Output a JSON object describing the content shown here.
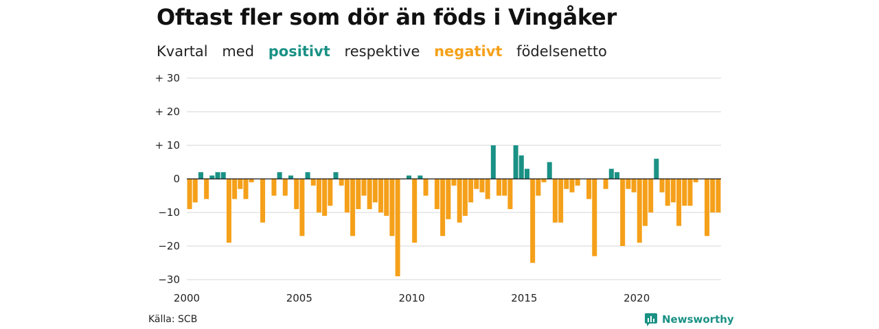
{
  "title": "Oftast fler som dör än föds i Vingåker",
  "subtitle": {
    "part1": "Kvartal",
    "part2": "med",
    "positive": "positivt",
    "part3": "respektive",
    "negative": "negativt",
    "part4": "födelsenetto"
  },
  "source": "Källa: SCB",
  "brand": "Newsworthy",
  "colors": {
    "positive": "#1a9185",
    "negative": "#f5a01a",
    "grid": "#dddddd",
    "zero": "#111111"
  },
  "chart_data": {
    "type": "bar",
    "title": "Oftast fler som dör än föds i Vingåker",
    "subtitle": "Kvartal med positivt respektive negativt födelsenetto",
    "xlabel": "",
    "ylabel": "",
    "ylim": [
      -30,
      30
    ],
    "yticks": [
      {
        "value": 30,
        "label": "+ 30"
      },
      {
        "value": 20,
        "label": "+ 20"
      },
      {
        "value": 10,
        "label": "+ 10"
      },
      {
        "value": 0,
        "label": "0"
      },
      {
        "value": -10,
        "label": "−10"
      },
      {
        "value": -20,
        "label": "−20"
      },
      {
        "value": -30,
        "label": "−30"
      }
    ],
    "xticks": [
      {
        "value": 2000,
        "label": "2000"
      },
      {
        "value": 2005,
        "label": "2005"
      },
      {
        "value": 2010,
        "label": "2010"
      },
      {
        "value": 2015,
        "label": "2015"
      },
      {
        "value": 2020,
        "label": "2020"
      }
    ],
    "xlim": [
      2000,
      2023.75
    ],
    "grid": true,
    "first_quarter": "2000K1",
    "values": [
      -9,
      -7,
      2,
      -6,
      1,
      2,
      2,
      -19,
      -6,
      -3,
      -6,
      -1,
      0,
      -13,
      0,
      -5,
      2,
      -5,
      1,
      -9,
      -17,
      2,
      -2,
      -10,
      -11,
      -8,
      2,
      -2,
      -10,
      -17,
      -9,
      -5,
      -9,
      -7,
      -10,
      -11,
      -17,
      -29,
      0,
      1,
      -19,
      1,
      -5,
      0,
      -9,
      -17,
      -12,
      -2,
      -13,
      -11,
      -7,
      -3,
      -4,
      -6,
      10,
      -5,
      -5,
      -9,
      10,
      7,
      3,
      -25,
      -5,
      -1,
      5,
      -13,
      -13,
      -3,
      -4,
      -2,
      0,
      -6,
      -23,
      0,
      -3,
      3,
      2,
      -20,
      -3,
      -4,
      -19,
      -14,
      -10,
      6,
      -4,
      -8,
      -7,
      -14,
      -8,
      -8,
      -1,
      0,
      -17,
      -10,
      -10
    ]
  }
}
